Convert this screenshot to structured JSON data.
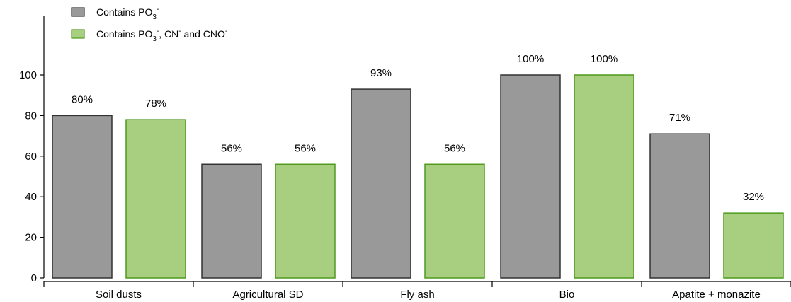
{
  "chart_data": {
    "type": "bar",
    "categories": [
      "Soil dusts",
      "Agricultural SD",
      "Fly ash",
      "Bio",
      "Apatite + monazite"
    ],
    "series": [
      {
        "name": "Contains PO3-",
        "legend": {
          "main": "Contains PO",
          "sub": "3",
          "sup": "-",
          "rest": ""
        },
        "color": "#999999",
        "stroke": "#333333",
        "values": [
          80,
          56,
          93,
          100,
          71
        ],
        "labels": [
          "80%",
          "56%",
          "93%",
          "100%",
          "71%"
        ]
      },
      {
        "name": "Contains PO3-, CN- and CNO-",
        "legend": {
          "main": "Contains PO",
          "sub": "3",
          "sup": "-",
          "rest": ", CN",
          "sup2": "-",
          "rest2": " and CNO",
          "sup3": "-"
        },
        "color": "#a8cf80",
        "stroke": "#4f9a1e",
        "values": [
          78,
          56,
          56,
          100,
          32
        ],
        "labels": [
          "78%",
          "56%",
          "56%",
          "100%",
          "32%"
        ]
      }
    ],
    "ylim": [
      0,
      100
    ],
    "yticks": [
      0,
      20,
      40,
      60,
      80,
      100
    ],
    "title": "",
    "xlabel": "",
    "ylabel": "",
    "grid": false,
    "legend_position": "top-left"
  }
}
